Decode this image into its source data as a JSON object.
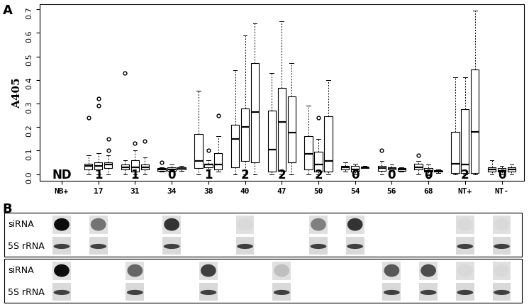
{
  "chart_data": {
    "type": "boxplot",
    "ylabel": "A405",
    "categories": [
      "NB+",
      "17",
      "31",
      "34",
      "38",
      "40",
      "47",
      "50",
      "54",
      "56",
      "68",
      "NT+",
      "NT-"
    ],
    "annotations": [
      "ND",
      "1",
      "1",
      "0",
      "1",
      "2",
      "2",
      "2",
      "0",
      "0",
      "0",
      "2",
      "0"
    ],
    "boxes": [
      [],
      [
        {
          "whislo": 0.0,
          "q1": 0.02,
          "med": 0.035,
          "q3": 0.045,
          "whishi": 0.08,
          "fliers": [
            0.24
          ]
        },
        {
          "whislo": 0.0,
          "q1": 0.02,
          "med": 0.035,
          "q3": 0.05,
          "whishi": 0.09,
          "fliers": [
            0.29,
            0.32
          ]
        },
        {
          "whislo": 0.0,
          "q1": 0.025,
          "med": 0.04,
          "q3": 0.05,
          "whishi": 0.08,
          "fliers": [
            0.1,
            0.15
          ]
        }
      ],
      [
        {
          "whislo": 0.0,
          "q1": 0.02,
          "med": 0.03,
          "q3": 0.04,
          "whishi": 0.06,
          "fliers": [
            0.43
          ]
        },
        {
          "whislo": 0.0,
          "q1": 0.01,
          "med": 0.03,
          "q3": 0.06,
          "whishi": 0.1,
          "fliers": [
            0.13
          ]
        },
        {
          "whislo": 0.0,
          "q1": 0.02,
          "med": 0.03,
          "q3": 0.04,
          "whishi": 0.07,
          "fliers": [
            0.14
          ]
        }
      ],
      [
        {
          "whislo": 0.01,
          "q1": 0.015,
          "med": 0.02,
          "q3": 0.025,
          "whishi": 0.03,
          "fliers": [
            0.05
          ]
        },
        {
          "whislo": 0.01,
          "q1": 0.015,
          "med": 0.02,
          "q3": 0.03,
          "whishi": 0.04,
          "fliers": []
        },
        {
          "whislo": 0.015,
          "q1": 0.02,
          "med": 0.025,
          "q3": 0.03,
          "whishi": 0.035,
          "fliers": []
        }
      ],
      [
        {
          "whislo": 0.0,
          "q1": 0.025,
          "med": 0.055,
          "q3": 0.17,
          "whishi": 0.355,
          "fliers": []
        },
        {
          "whislo": 0.02,
          "q1": 0.03,
          "med": 0.04,
          "q3": 0.045,
          "whishi": 0.06,
          "fliers": [
            0.1
          ]
        },
        {
          "whislo": 0.01,
          "q1": 0.02,
          "med": 0.04,
          "q3": 0.09,
          "whishi": 0.16,
          "fliers": [
            0.25
          ]
        }
      ],
      [
        {
          "whislo": 0.0,
          "q1": 0.03,
          "med": 0.15,
          "q3": 0.21,
          "whishi": 0.44,
          "fliers": []
        },
        {
          "whislo": 0.0,
          "q1": 0.055,
          "med": 0.2,
          "q3": 0.28,
          "whishi": 0.59,
          "fliers": []
        },
        {
          "whislo": 0.0,
          "q1": 0.05,
          "med": 0.265,
          "q3": 0.47,
          "whishi": 0.64,
          "fliers": []
        }
      ],
      [
        {
          "whislo": 0.0,
          "q1": 0.01,
          "med": 0.105,
          "q3": 0.27,
          "whishi": 0.43,
          "fliers": []
        },
        {
          "whislo": 0.0,
          "q1": 0.015,
          "med": 0.22,
          "q3": 0.365,
          "whishi": 0.65,
          "fliers": []
        },
        {
          "whislo": 0.0,
          "q1": 0.05,
          "med": 0.175,
          "q3": 0.33,
          "whishi": 0.47,
          "fliers": []
        }
      ],
      [
        {
          "whislo": 0.0,
          "q1": 0.02,
          "med": 0.085,
          "q3": 0.16,
          "whishi": 0.29,
          "fliers": []
        },
        {
          "whislo": 0.0,
          "q1": 0.01,
          "med": 0.04,
          "q3": 0.095,
          "whishi": 0.15,
          "fliers": [
            0.24
          ]
        },
        {
          "whislo": 0.0,
          "q1": 0.01,
          "med": 0.055,
          "q3": 0.245,
          "whishi": 0.4,
          "fliers": []
        }
      ],
      [
        {
          "whislo": 0.01,
          "q1": 0.02,
          "med": 0.03,
          "q3": 0.035,
          "whishi": 0.05,
          "fliers": []
        },
        {
          "whislo": 0.0,
          "q1": 0.01,
          "med": 0.02,
          "q3": 0.035,
          "whishi": 0.045,
          "fliers": []
        },
        {
          "whislo": 0.025,
          "q1": 0.025,
          "med": 0.03,
          "q3": 0.03,
          "whishi": 0.035,
          "fliers": []
        }
      ],
      [
        {
          "whislo": 0.0,
          "q1": 0.015,
          "med": 0.025,
          "q3": 0.035,
          "whishi": 0.055,
          "fliers": [
            0.1
          ]
        },
        {
          "whislo": 0.01,
          "q1": 0.02,
          "med": 0.025,
          "q3": 0.03,
          "whishi": 0.04,
          "fliers": []
        },
        {
          "whislo": 0.01,
          "q1": 0.015,
          "med": 0.02,
          "q3": 0.025,
          "whishi": 0.03,
          "fliers": []
        }
      ],
      [
        {
          "whislo": 0.0,
          "q1": 0.02,
          "med": 0.03,
          "q3": 0.045,
          "whishi": 0.055,
          "fliers": [
            0.08
          ]
        },
        {
          "whislo": 0.0,
          "q1": 0.01,
          "med": 0.015,
          "q3": 0.025,
          "whishi": 0.04,
          "fliers": [
            -0.01
          ]
        },
        {
          "whislo": 0.005,
          "q1": 0.01,
          "med": 0.015,
          "q3": 0.015,
          "whishi": 0.02,
          "fliers": []
        }
      ],
      [
        {
          "whislo": 0.0,
          "q1": 0.005,
          "med": 0.045,
          "q3": 0.18,
          "whishi": 0.41,
          "fliers": []
        },
        {
          "whislo": 0.0,
          "q1": 0.005,
          "med": 0.04,
          "q3": 0.275,
          "whishi": 0.41,
          "fliers": []
        },
        {
          "whislo": 0.0,
          "q1": 0.005,
          "med": 0.18,
          "q3": 0.445,
          "whishi": 0.695,
          "fliers": []
        }
      ],
      [
        {
          "whislo": 0.0,
          "q1": 0.01,
          "med": 0.02,
          "q3": 0.03,
          "whishi": 0.06,
          "fliers": []
        },
        {
          "whislo": 0.0,
          "q1": 0.01,
          "med": 0.015,
          "q3": 0.025,
          "whishi": 0.035,
          "fliers": []
        },
        {
          "whislo": 0.0,
          "q1": 0.01,
          "med": 0.02,
          "q3": 0.03,
          "whishi": 0.04,
          "fliers": []
        }
      ]
    ],
    "ylim": [
      -0.03,
      0.72
    ],
    "yticks": [
      0.0,
      0.1,
      0.2,
      0.3,
      0.4,
      0.5,
      0.6,
      0.7
    ],
    "color": "#000000"
  },
  "panel_labels": [
    "A",
    "B"
  ],
  "panel_b": {
    "row_labels": [
      "siRNA",
      "5S rRNA"
    ]
  }
}
